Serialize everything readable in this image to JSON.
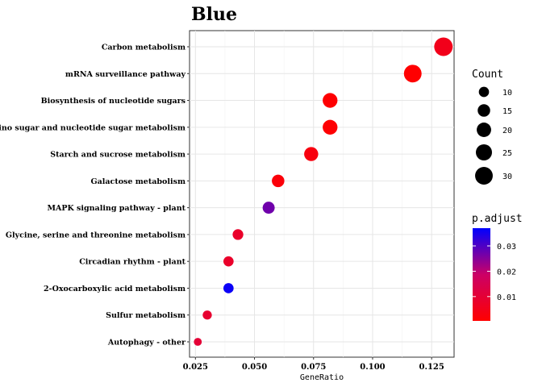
{
  "chart_data": {
    "type": "scatter",
    "title": "Blue",
    "xlabel": "GeneRatio",
    "ylabel": "",
    "xlim": [
      0.0225,
      0.1345
    ],
    "x_ticks": [
      0.025,
      0.05,
      0.075,
      0.1,
      0.125
    ],
    "x_tick_labels": [
      "0.025",
      "0.050",
      "0.075",
      "0.100",
      "0.125"
    ],
    "grid": true,
    "categories": [
      "Carbon metabolism",
      "mRNA surveillance pathway",
      "Biosynthesis of nucleotide sugars",
      "Amino sugar and nucleotide sugar metabolism",
      "Starch and sucrose metabolism",
      "Galactose metabolism",
      "MAPK signaling pathway - plant",
      "Glycine, serine and threonine metabolism",
      "Circadian rhythm - plant",
      "2-Oxocarboxylic acid metabolism",
      "Sulfur metabolism",
      "Autophagy - other"
    ],
    "points": [
      {
        "term": "Carbon metabolism",
        "x": 0.13,
        "count": 33,
        "p_adjust": 0.005
      },
      {
        "term": "mRNA surveillance pathway",
        "x": 0.117,
        "count": 30,
        "p_adjust": 0.0005
      },
      {
        "term": "Biosynthesis of nucleotide sugars",
        "x": 0.082,
        "count": 21,
        "p_adjust": 0.0007
      },
      {
        "term": "Amino sugar and nucleotide sugar metabolism",
        "x": 0.082,
        "count": 21,
        "p_adjust": 0.0009
      },
      {
        "term": "Starch and sucrose metabolism",
        "x": 0.074,
        "count": 19,
        "p_adjust": 0.003
      },
      {
        "term": "Galactose metabolism",
        "x": 0.06,
        "count": 15,
        "p_adjust": 0.002
      },
      {
        "term": "MAPK signaling pathway - plant",
        "x": 0.056,
        "count": 14,
        "p_adjust": 0.027
      },
      {
        "term": "Glycine, serine and threonine metabolism",
        "x": 0.043,
        "count": 11,
        "p_adjust": 0.008
      },
      {
        "term": "Circadian rhythm - plant",
        "x": 0.039,
        "count": 10,
        "p_adjust": 0.008
      },
      {
        "term": "2-Oxocarboxylic acid metabolism",
        "x": 0.039,
        "count": 10,
        "p_adjust": 0.036
      },
      {
        "term": "Sulfur metabolism",
        "x": 0.03,
        "count": 8,
        "p_adjust": 0.009
      },
      {
        "term": "Autophagy - other",
        "x": 0.026,
        "count": 6,
        "p_adjust": 0.01
      }
    ],
    "size_legend": {
      "title": "Count",
      "values": [
        10,
        15,
        20,
        25,
        30
      ],
      "labels": [
        "10",
        "15",
        "20",
        "25",
        "30"
      ]
    },
    "color_legend": {
      "title": "p.adjust",
      "min": 0.0004,
      "max": 0.037,
      "ticks": [
        0.01,
        0.02,
        0.03
      ],
      "tick_labels": [
        "0.01",
        "0.02",
        "0.03"
      ],
      "low_color": "#ff0000",
      "high_color": "#0000ff"
    },
    "legend_position": "right"
  }
}
